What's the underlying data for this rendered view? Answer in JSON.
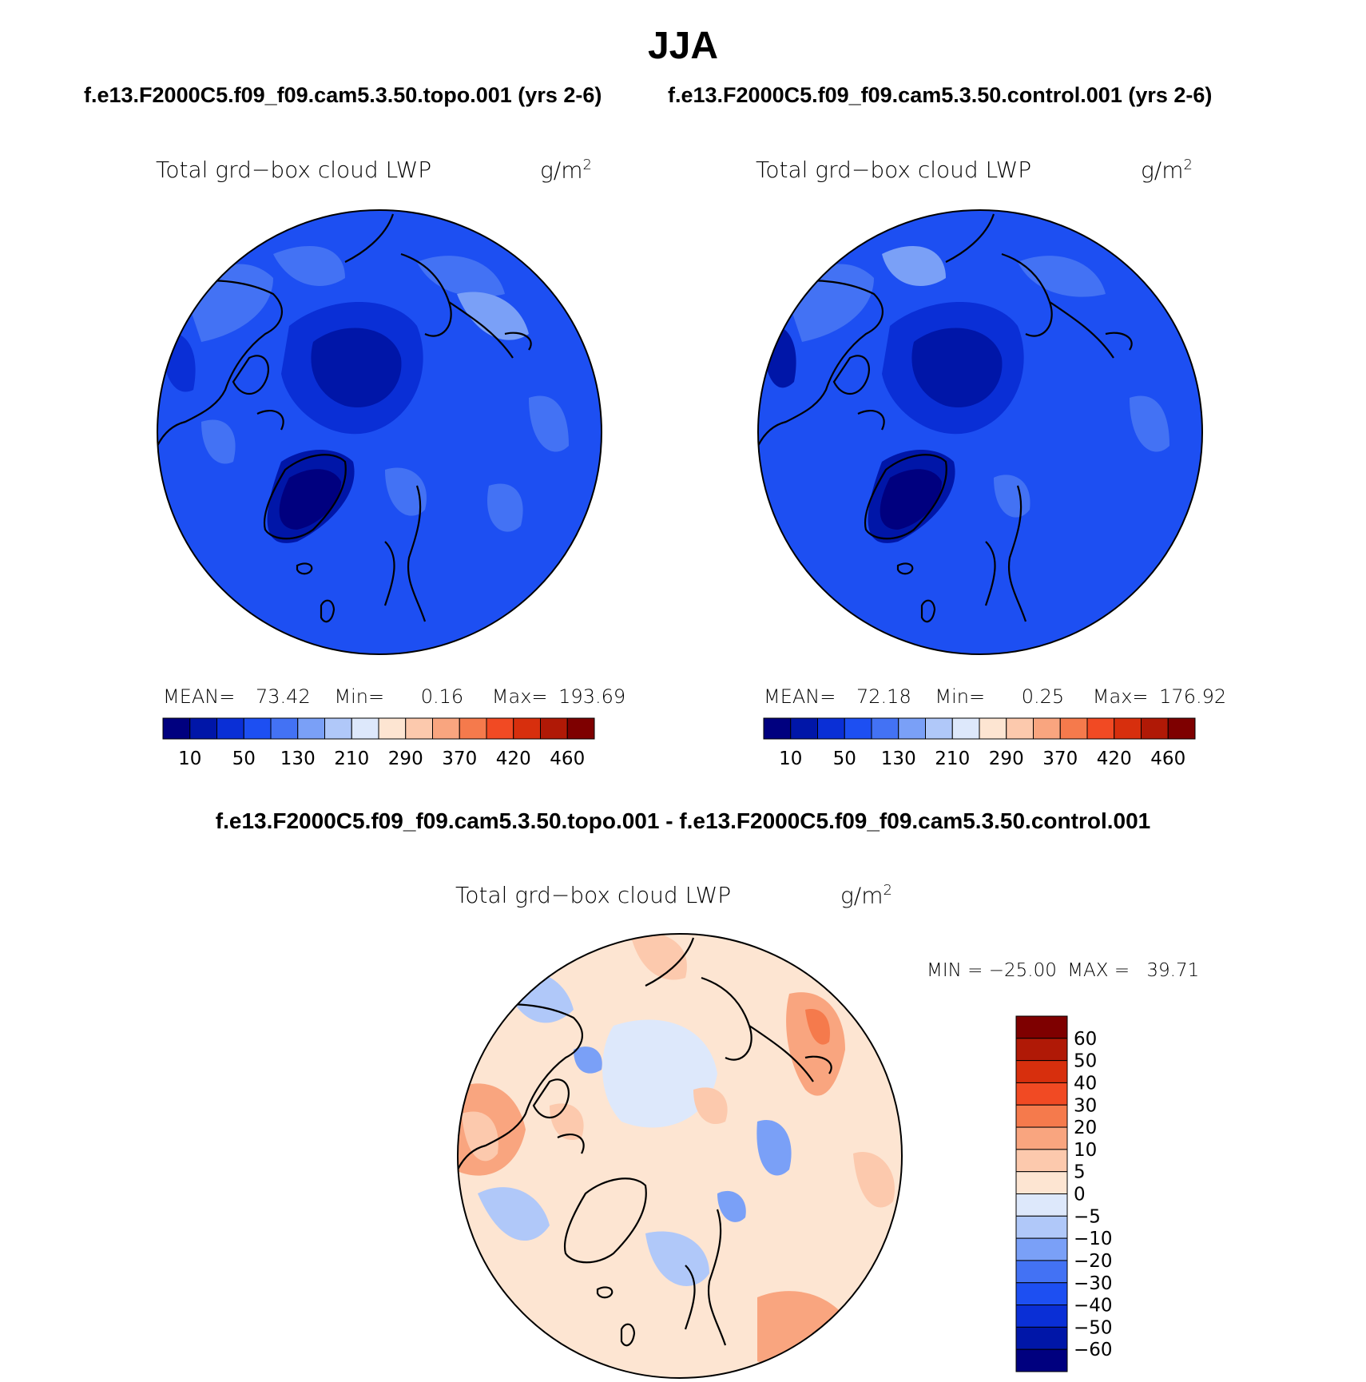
{
  "main_title": "JJA",
  "panel_titles": {
    "left": "f.e13.F2000C5.f09_f09.cam5.3.50.topo.001 (yrs 2-6)",
    "right": "f.e13.F2000C5.f09_f09.cam5.3.50.control.001 (yrs 2-6)",
    "difference": "f.e13.F2000C5.f09_f09.cam5.3.50.topo.001 - f.e13.F2000C5.f09_f09.cam5.3.50.control.001"
  },
  "variable_label": "Total grd−box cloud LWP",
  "units_label": "g/m",
  "units_superscript": "2",
  "panels": [
    {
      "id": "topo",
      "stats": {
        "mean_label": "MEAN=",
        "mean": "73.42",
        "min_label": "Min=",
        "min": "0.16",
        "max_label": "Max=",
        "max": "193.69"
      }
    },
    {
      "id": "control",
      "stats": {
        "mean_label": "MEAN=",
        "mean": "72.18",
        "min_label": "Min=",
        "min": "0.25",
        "max_label": "Max=",
        "max": "176.92"
      }
    }
  ],
  "horizontal_colorbar": {
    "colors": [
      "#00007f",
      "#0016a8",
      "#0a2fd6",
      "#1d4ff2",
      "#4372f4",
      "#7aa0f7",
      "#b0c8f9",
      "#dde8fb",
      "#fde5d2",
      "#fcc9ad",
      "#f9a57f",
      "#f57a4c",
      "#f14a23",
      "#d72f0d",
      "#b01906",
      "#7e0000"
    ],
    "tick_labels": [
      "10",
      "50",
      "130",
      "210",
      "290",
      "370",
      "420",
      "460"
    ]
  },
  "difference_stats": {
    "min_label": "MIN =",
    "min": "−25.00",
    "max_label": "MAX =",
    "max": "39.71"
  },
  "vertical_colorbar": {
    "colors_top_to_bottom": [
      "#7e0000",
      "#b01906",
      "#d72f0d",
      "#f14a23",
      "#f57a4c",
      "#f9a57f",
      "#fcc9ad",
      "#fde5d2",
      "#dde8fb",
      "#b0c8f9",
      "#7aa0f7",
      "#4372f4",
      "#1d4ff2",
      "#0a2fd6",
      "#0016a8",
      "#00007f"
    ],
    "tick_labels_top_to_bottom": [
      "60",
      "50",
      "40",
      "30",
      "20",
      "10",
      "5",
      "0",
      "−5",
      "−10",
      "−20",
      "−30",
      "−40",
      "−50",
      "−60"
    ]
  },
  "map_colors": {
    "blue_deep": "#00007f",
    "blue_dark": "#0016a8",
    "blue_mid": "#0a2fd6",
    "blue_main": "#1d4ff2",
    "blue_light": "#4372f4",
    "blue_pale": "#7aa0f7",
    "diff_neutral_pos": "#fde5d2",
    "diff_neutral_neg": "#dde8fb",
    "diff_pos": "#fcc9ad",
    "diff_pos2": "#f9a57f",
    "diff_pos3": "#f57a4c",
    "diff_neg": "#b0c8f9",
    "diff_neg2": "#7aa0f7",
    "diff_neg3": "#4372f4"
  },
  "region_names": [
    "north-america-outline",
    "greenland-outline",
    "eurasia-outline",
    "iceland-outline",
    "british-isles-outline"
  ]
}
